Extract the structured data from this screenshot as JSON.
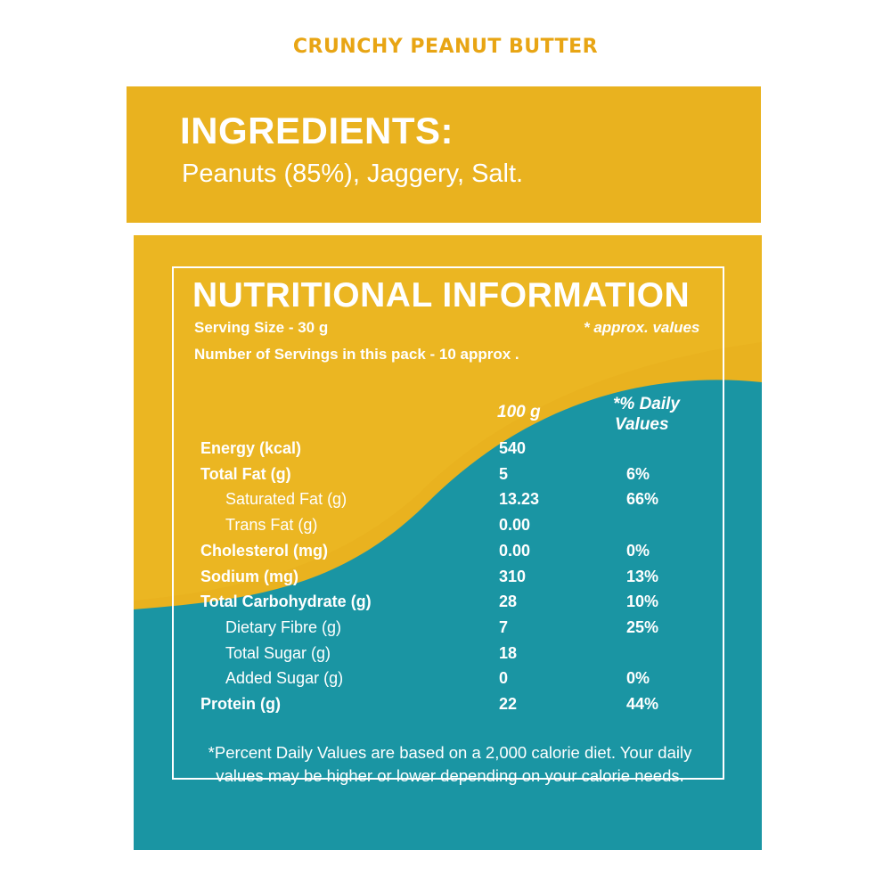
{
  "product_title": "CRUNCHY PEANUT BUTTER",
  "ingredients": {
    "heading": "INGREDIENTS:",
    "text": "Peanuts (85%), Jaggery, Salt."
  },
  "nutrition": {
    "heading": "NUTRITIONAL INFORMATION",
    "serving_size": "Serving Size - 30 g",
    "approx_note": "* approx. values",
    "servings_count": "Number of Servings in this pack - 10 approx .",
    "col_100g": "100 g",
    "col_dv_line1": "*% Daily",
    "col_dv_line2": "Values",
    "rows": [
      {
        "label": "Energy (kcal)",
        "per100g": "540",
        "dv": ""
      },
      {
        "label": "Total Fat (g)",
        "per100g": "5",
        "dv": "6%"
      },
      {
        "label": "Saturated Fat (g)",
        "per100g": "13.23",
        "dv": "66%"
      },
      {
        "label": "Trans Fat (g)",
        "per100g": "0.00",
        "dv": ""
      },
      {
        "label": "Cholesterol (mg)",
        "per100g": "0.00",
        "dv": "0%"
      },
      {
        "label": "Sodium (mg)",
        "per100g": "310",
        "dv": "13%"
      },
      {
        "label": "Total Carbohydrate (g)",
        "per100g": "28",
        "dv": "10%"
      },
      {
        "label": "Dietary Fibre (g)",
        "per100g": "7",
        "dv": "25%"
      },
      {
        "label": "Total Sugar (g)",
        "per100g": "18",
        "dv": ""
      },
      {
        "label": "Added Sugar (g)",
        "per100g": "0",
        "dv": "0%"
      },
      {
        "label": "Protein (g)",
        "per100g": "22",
        "dv": "44%"
      }
    ],
    "footnote_line1": "*Percent Daily Values are based on a 2,000 calorie diet. Your daily",
    "footnote_line2": "values may be higher or lower depending on your calorie needs."
  },
  "colors": {
    "mustard": "#e9b21f",
    "teal": "#1a95a3",
    "title_orange": "#e8a514"
  }
}
